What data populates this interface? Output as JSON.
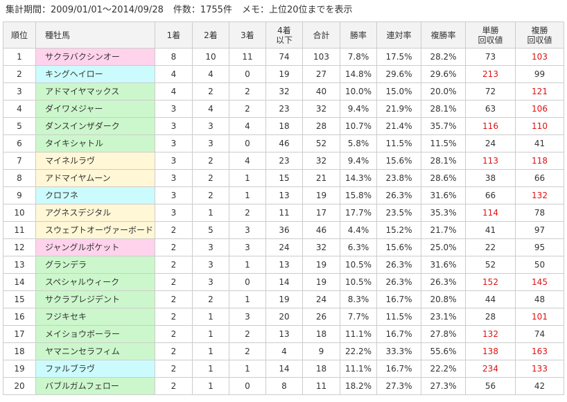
{
  "meta": {
    "period": "集計期間：2009/01/01～2014/09/28",
    "count": "件数：1755件",
    "memo": "メモ：上位20位までを表示"
  },
  "headers": [
    "順位",
    "種牡馬",
    "1着",
    "2着",
    "3着",
    "4着\n以下",
    "合計",
    "勝率",
    "連対率",
    "複勝率",
    "単勝\n回収値",
    "複勝\n回収値"
  ],
  "colors": {
    "pink": "#ffd3ec",
    "blue": "#ccfbfd",
    "green": "#ccf7cc",
    "yellow": "#fff7d6",
    "highlight": "#dd1111"
  },
  "highlight_rule": "回収値 ≥ 100 shown in red",
  "rows": [
    {
      "rank": "1",
      "name": "サクラバクシンオー",
      "color": "pink",
      "w1": "8",
      "w2": "10",
      "w3": "11",
      "w4": "74",
      "total": "103",
      "win": "7.8%",
      "rentai": "17.5%",
      "fukusho": "28.2%",
      "tan": "73",
      "fuku": "103"
    },
    {
      "rank": "2",
      "name": "キングヘイロー",
      "color": "blue",
      "w1": "4",
      "w2": "4",
      "w3": "0",
      "w4": "19",
      "total": "27",
      "win": "14.8%",
      "rentai": "29.6%",
      "fukusho": "29.6%",
      "tan": "213",
      "fuku": "99"
    },
    {
      "rank": "3",
      "name": "アドマイヤマックス",
      "color": "green",
      "w1": "4",
      "w2": "2",
      "w3": "2",
      "w4": "32",
      "total": "40",
      "win": "10.0%",
      "rentai": "15.0%",
      "fukusho": "20.0%",
      "tan": "72",
      "fuku": "121"
    },
    {
      "rank": "4",
      "name": "ダイワメジャー",
      "color": "green",
      "w1": "3",
      "w2": "4",
      "w3": "2",
      "w4": "23",
      "total": "32",
      "win": "9.4%",
      "rentai": "21.9%",
      "fukusho": "28.1%",
      "tan": "63",
      "fuku": "106"
    },
    {
      "rank": "5",
      "name": "ダンスインザダーク",
      "color": "green",
      "w1": "3",
      "w2": "3",
      "w3": "4",
      "w4": "18",
      "total": "28",
      "win": "10.7%",
      "rentai": "21.4%",
      "fukusho": "35.7%",
      "tan": "116",
      "fuku": "110"
    },
    {
      "rank": "6",
      "name": "タイキシャトル",
      "color": "green",
      "w1": "3",
      "w2": "3",
      "w3": "0",
      "w4": "46",
      "total": "52",
      "win": "5.8%",
      "rentai": "11.5%",
      "fukusho": "11.5%",
      "tan": "24",
      "fuku": "41"
    },
    {
      "rank": "7",
      "name": "マイネルラヴ",
      "color": "yellow",
      "w1": "3",
      "w2": "2",
      "w3": "4",
      "w4": "23",
      "total": "32",
      "win": "9.4%",
      "rentai": "15.6%",
      "fukusho": "28.1%",
      "tan": "113",
      "fuku": "118"
    },
    {
      "rank": "8",
      "name": "アドマイヤムーン",
      "color": "yellow",
      "w1": "3",
      "w2": "2",
      "w3": "1",
      "w4": "15",
      "total": "21",
      "win": "14.3%",
      "rentai": "23.8%",
      "fukusho": "28.6%",
      "tan": "38",
      "fuku": "66"
    },
    {
      "rank": "9",
      "name": "クロフネ",
      "color": "blue",
      "w1": "3",
      "w2": "2",
      "w3": "1",
      "w4": "13",
      "total": "19",
      "win": "15.8%",
      "rentai": "26.3%",
      "fukusho": "31.6%",
      "tan": "66",
      "fuku": "132"
    },
    {
      "rank": "10",
      "name": "アグネスデジタル",
      "color": "yellow",
      "w1": "3",
      "w2": "1",
      "w3": "2",
      "w4": "11",
      "total": "17",
      "win": "17.7%",
      "rentai": "23.5%",
      "fukusho": "35.3%",
      "tan": "114",
      "fuku": "78"
    },
    {
      "rank": "11",
      "name": "スウェプトオーヴァーボード",
      "color": "yellow",
      "w1": "2",
      "w2": "5",
      "w3": "3",
      "w4": "36",
      "total": "46",
      "win": "4.4%",
      "rentai": "15.2%",
      "fukusho": "21.7%",
      "tan": "41",
      "fuku": "97"
    },
    {
      "rank": "12",
      "name": "ジャングルポケット",
      "color": "pink",
      "w1": "2",
      "w2": "3",
      "w3": "3",
      "w4": "24",
      "total": "32",
      "win": "6.3%",
      "rentai": "15.6%",
      "fukusho": "25.0%",
      "tan": "22",
      "fuku": "95"
    },
    {
      "rank": "13",
      "name": "グランデラ",
      "color": "green",
      "w1": "2",
      "w2": "3",
      "w3": "1",
      "w4": "13",
      "total": "19",
      "win": "10.5%",
      "rentai": "26.3%",
      "fukusho": "31.6%",
      "tan": "52",
      "fuku": "50"
    },
    {
      "rank": "14",
      "name": "スペシャルウィーク",
      "color": "green",
      "w1": "2",
      "w2": "3",
      "w3": "0",
      "w4": "14",
      "total": "19",
      "win": "10.5%",
      "rentai": "26.3%",
      "fukusho": "26.3%",
      "tan": "152",
      "fuku": "145"
    },
    {
      "rank": "15",
      "name": "サクラプレジデント",
      "color": "green",
      "w1": "2",
      "w2": "2",
      "w3": "1",
      "w4": "19",
      "total": "24",
      "win": "8.3%",
      "rentai": "16.7%",
      "fukusho": "20.8%",
      "tan": "44",
      "fuku": "48"
    },
    {
      "rank": "16",
      "name": "フジキセキ",
      "color": "green",
      "w1": "2",
      "w2": "1",
      "w3": "3",
      "w4": "20",
      "total": "26",
      "win": "7.7%",
      "rentai": "11.5%",
      "fukusho": "23.1%",
      "tan": "28",
      "fuku": "101"
    },
    {
      "rank": "17",
      "name": "メイショウボーラー",
      "color": "green",
      "w1": "2",
      "w2": "1",
      "w3": "2",
      "w4": "13",
      "total": "18",
      "win": "11.1%",
      "rentai": "16.7%",
      "fukusho": "27.8%",
      "tan": "132",
      "fuku": "74"
    },
    {
      "rank": "18",
      "name": "ヤマニンセラフィム",
      "color": "green",
      "w1": "2",
      "w2": "1",
      "w3": "2",
      "w4": "4",
      "total": "9",
      "win": "22.2%",
      "rentai": "33.3%",
      "fukusho": "55.6%",
      "tan": "138",
      "fuku": "163"
    },
    {
      "rank": "19",
      "name": "ファルブラヴ",
      "color": "blue",
      "w1": "2",
      "w2": "1",
      "w3": "1",
      "w4": "14",
      "total": "18",
      "win": "11.1%",
      "rentai": "16.7%",
      "fukusho": "22.2%",
      "tan": "234",
      "fuku": "133"
    },
    {
      "rank": "20",
      "name": "バブルガムフェロー",
      "color": "green",
      "w1": "2",
      "w2": "1",
      "w3": "0",
      "w4": "8",
      "total": "11",
      "win": "18.2%",
      "rentai": "27.3%",
      "fukusho": "27.3%",
      "tan": "56",
      "fuku": "42"
    }
  ]
}
